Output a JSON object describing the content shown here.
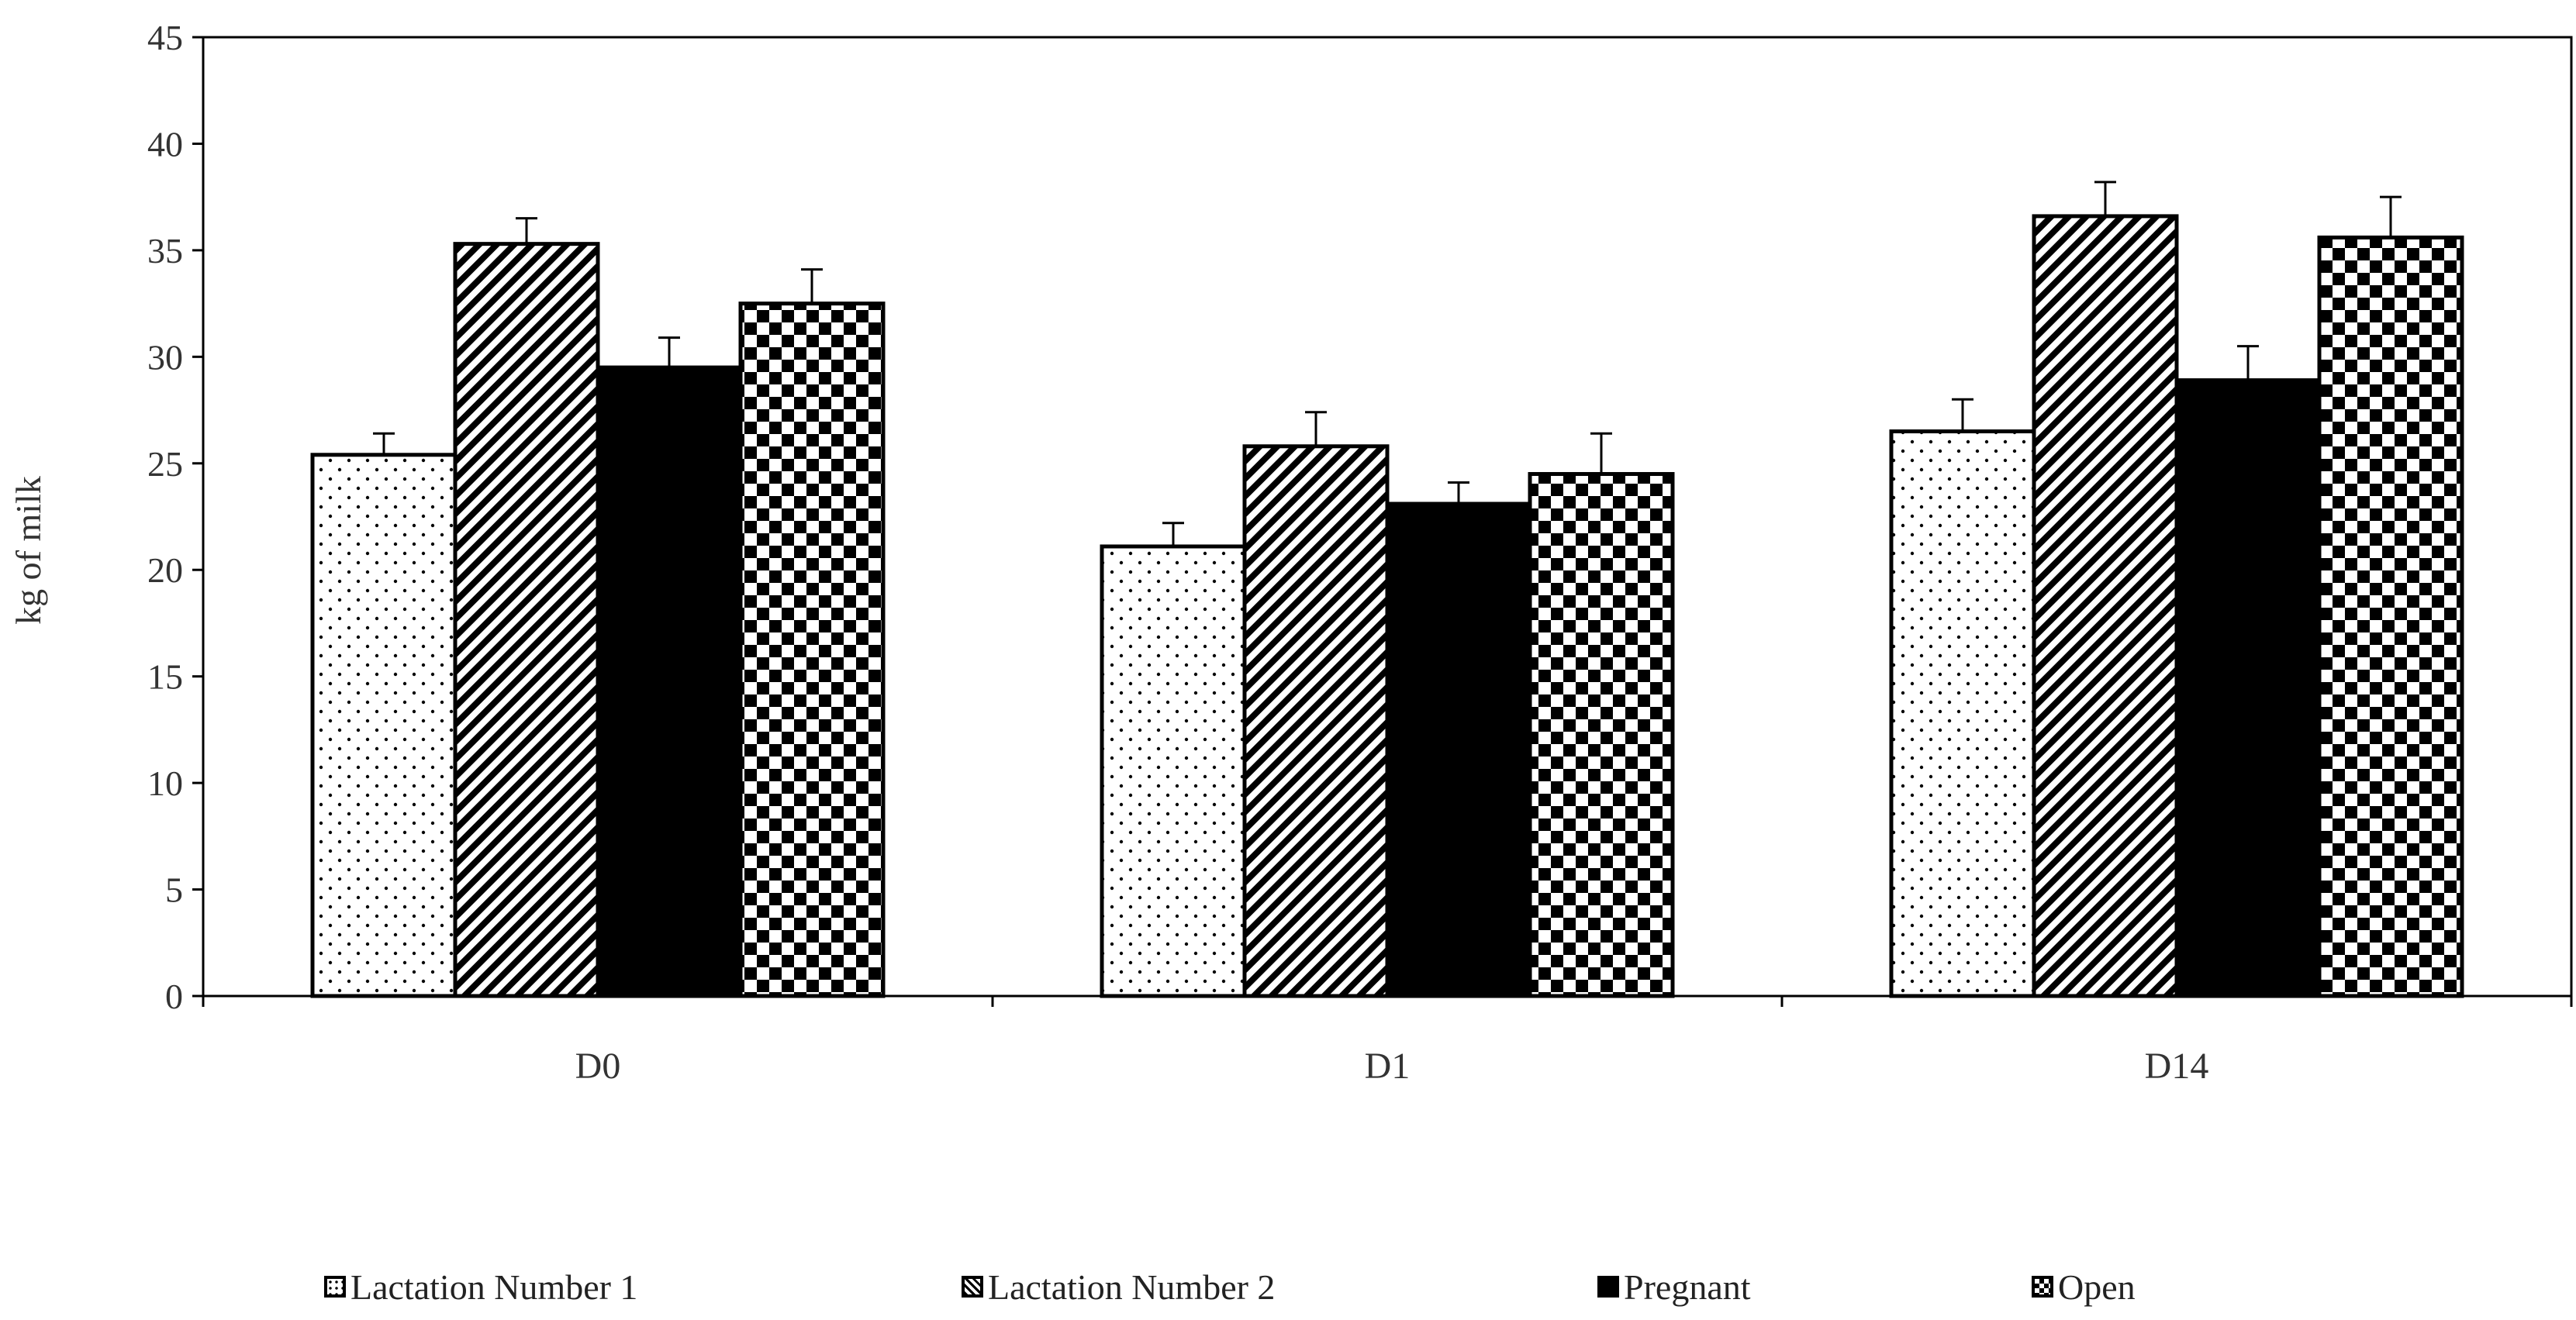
{
  "chart_data": {
    "type": "bar",
    "title": "",
    "xlabel": "",
    "ylabel": "kg of milk",
    "ylim": [
      0,
      45
    ],
    "yticks": [
      "0",
      "5",
      "10",
      "15",
      "20",
      "25",
      "30",
      "35",
      "40",
      "45"
    ],
    "categories": [
      "D0",
      "D1",
      "D14"
    ],
    "series": [
      {
        "name": "Lactation Number 1",
        "pattern": "dots",
        "values": [
          25.4,
          21.1,
          26.5
        ],
        "errors": [
          1.0,
          1.1,
          1.5
        ]
      },
      {
        "name": "Lactation Number 2",
        "pattern": "diagonal",
        "values": [
          35.3,
          25.8,
          36.6
        ],
        "errors": [
          1.2,
          1.6,
          1.6
        ]
      },
      {
        "name": "Pregnant",
        "pattern": "solid",
        "values": [
          29.5,
          23.1,
          28.9
        ],
        "errors": [
          1.4,
          1.0,
          1.6
        ]
      },
      {
        "name": "Open",
        "pattern": "checker",
        "values": [
          32.5,
          24.5,
          35.6
        ],
        "errors": [
          1.6,
          1.9,
          1.9
        ]
      }
    ],
    "legend_position": "bottom",
    "grid": false,
    "colors": {
      "bar_outline": "#000000",
      "fill": "#000000",
      "background": "#ffffff"
    }
  }
}
